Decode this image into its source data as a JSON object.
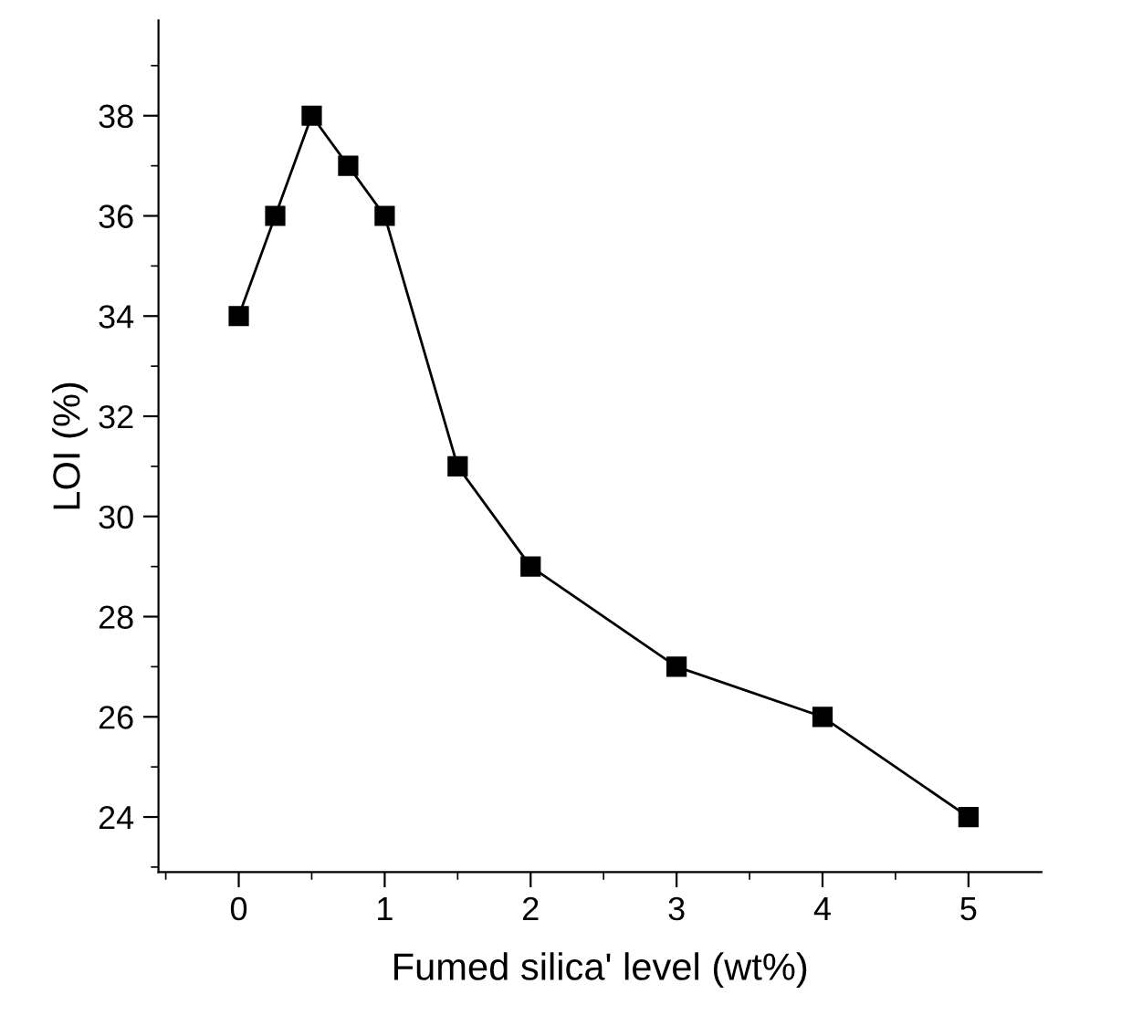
{
  "chart_data": {
    "type": "line",
    "xlabel": "Fumed silica' level (wt%)",
    "ylabel": "LOI (%)",
    "x": [
      0,
      0.25,
      0.5,
      0.75,
      1,
      1.5,
      2,
      3,
      4,
      5
    ],
    "series": [
      {
        "color": "#000000",
        "values": [
          34,
          36,
          38,
          37,
          36,
          31,
          29,
          27,
          26,
          24
        ]
      }
    ],
    "marker": "square",
    "line_style": "solid",
    "grid": false,
    "legend": false,
    "xlim": [
      -0.55,
      5.5
    ],
    "ylim": [
      22.9,
      39.9
    ],
    "xticks": [
      {
        "value": -0.5,
        "label": null
      },
      0,
      {
        "value": 0.5,
        "label": null
      },
      1,
      {
        "value": 1.5,
        "label": null
      },
      2,
      {
        "value": 2.5,
        "label": null
      },
      3,
      {
        "value": 3.5,
        "label": null
      },
      4,
      {
        "value": 4.5,
        "label": null
      },
      5
    ],
    "yticks": [
      {
        "value": 23,
        "label": null
      },
      24,
      {
        "value": 25,
        "label": null
      },
      26,
      {
        "value": 27,
        "label": null
      },
      28,
      {
        "value": 29,
        "label": null
      },
      30,
      {
        "value": 31,
        "label": null
      },
      32,
      {
        "value": 33,
        "label": null
      },
      34,
      {
        "value": 35,
        "label": null
      },
      36,
      {
        "value": 37,
        "label": null
      },
      38,
      {
        "value": 39,
        "label": null
      }
    ]
  }
}
